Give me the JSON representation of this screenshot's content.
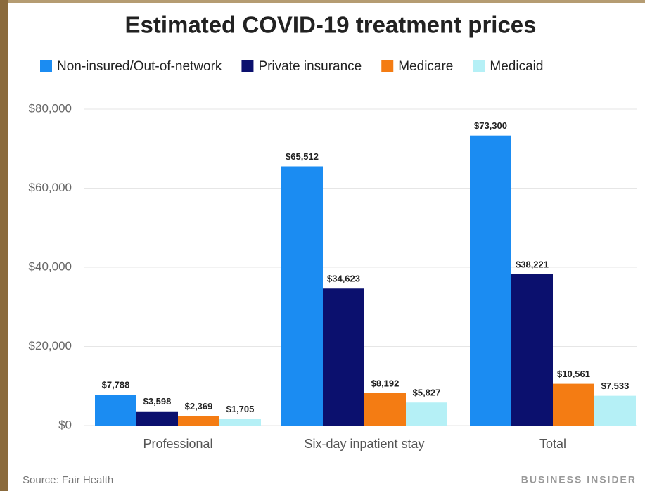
{
  "chart_data": {
    "type": "bar",
    "title": "Estimated COVID-19 treatment prices",
    "categories": [
      "Professional",
      "Six-day inpatient stay",
      "Total"
    ],
    "series": [
      {
        "name": "Non-insured/Out-of-network",
        "color": "#1b8cf2",
        "values": [
          7788,
          65512,
          73300
        ],
        "value_labels": [
          "$7,788",
          "$65,512",
          "$73,300"
        ]
      },
      {
        "name": "Private insurance",
        "color": "#0b106e",
        "values": [
          3598,
          34623,
          38221
        ],
        "value_labels": [
          "$3,598",
          "$34,623",
          "$38,221"
        ]
      },
      {
        "name": "Medicare",
        "color": "#f47c13",
        "values": [
          2369,
          8192,
          10561
        ],
        "value_labels": [
          "$2,369",
          "$8,192",
          "$10,561"
        ]
      },
      {
        "name": "Medicaid",
        "color": "#b5f0f6",
        "values": [
          1705,
          5827,
          7533
        ],
        "value_labels": [
          "$1,705",
          "$5,827",
          "$7,533"
        ]
      }
    ],
    "ylim": [
      0,
      80000
    ],
    "yticks": [
      {
        "value": 0,
        "label": "$0"
      },
      {
        "value": 20000,
        "label": "$20,000"
      },
      {
        "value": 40000,
        "label": "$40,000"
      },
      {
        "value": 60000,
        "label": "$60,000"
      },
      {
        "value": 80000,
        "label": "$80,000"
      }
    ],
    "grid": true,
    "source": "Source: Fair Health",
    "brand": "BUSINESS INSIDER"
  }
}
